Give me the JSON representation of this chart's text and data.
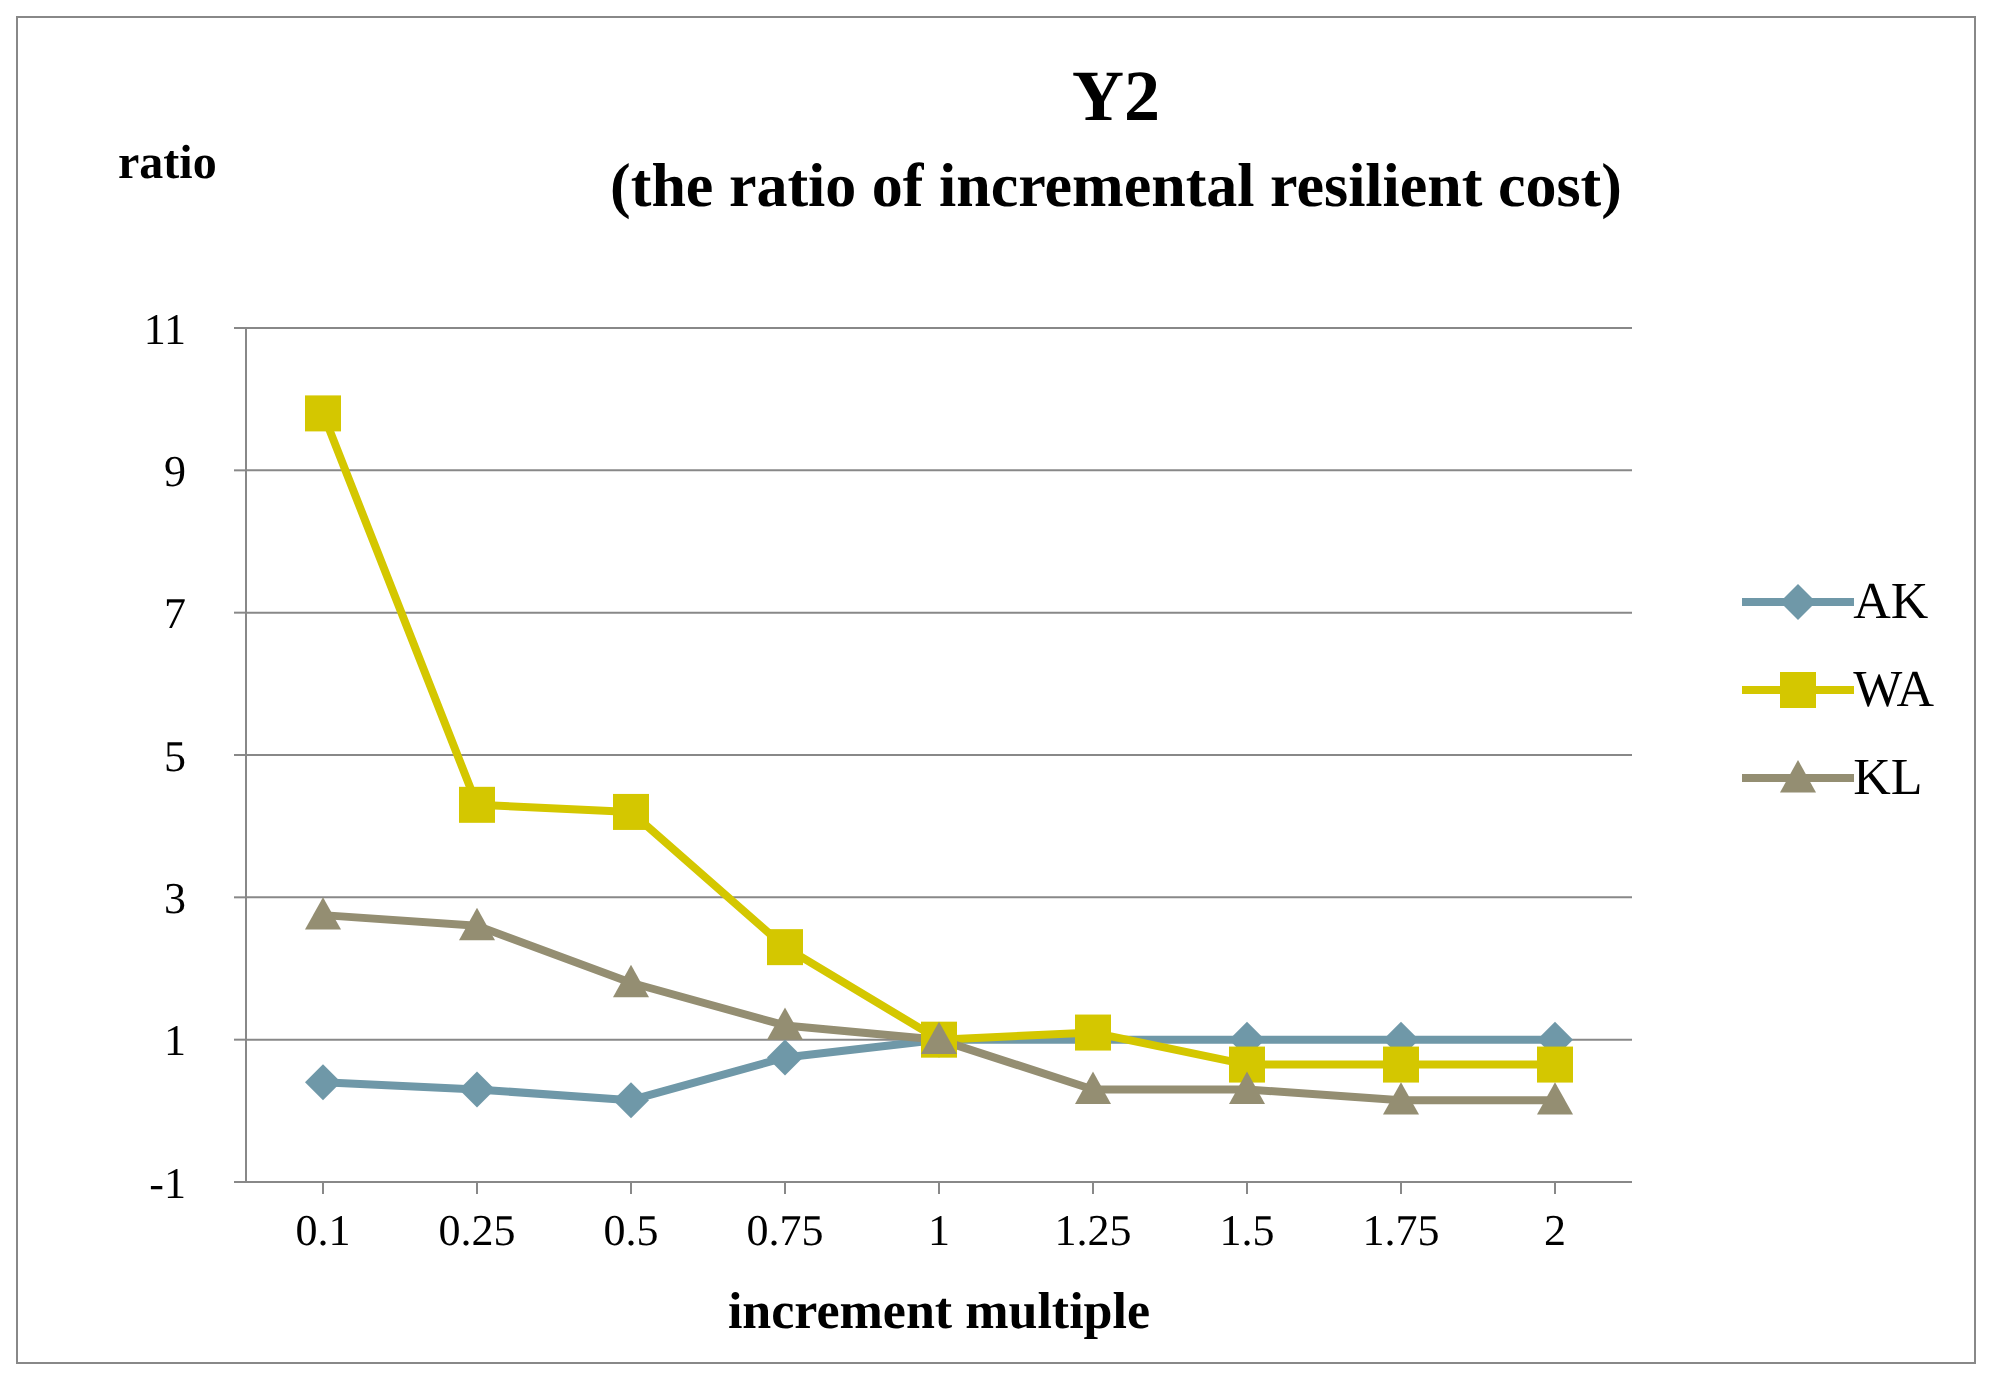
{
  "chart_data": {
    "type": "line",
    "title": "Y2",
    "subtitle": "(the ratio of incremental resilient cost)",
    "ylabel": "ratio",
    "xlabel": "increment multiple",
    "categories": [
      "0.1",
      "0.25",
      "0.5",
      "0.75",
      "1",
      "1.25",
      "1.5",
      "1.75",
      "2"
    ],
    "series": [
      {
        "name": "AK",
        "color": "#6f98a8",
        "marker": "diamond",
        "values": [
          0.4,
          0.3,
          0.15,
          0.75,
          1,
          null,
          1,
          1,
          1
        ]
      },
      {
        "name": "WA",
        "color": "#d4c700",
        "marker": "square",
        "values": [
          9.8,
          4.3,
          4.2,
          2.3,
          1,
          1.1,
          0.65,
          0.65,
          0.65
        ]
      },
      {
        "name": "KL",
        "color": "#948e72",
        "marker": "triangle",
        "values": [
          2.75,
          2.6,
          1.8,
          1.2,
          1,
          0.3,
          0.3,
          0.15,
          0.15
        ]
      }
    ],
    "ylim": [
      -1,
      11
    ],
    "yticks": [
      -1,
      1,
      3,
      5,
      7,
      9,
      11
    ],
    "grid": "y",
    "legend": "right"
  }
}
